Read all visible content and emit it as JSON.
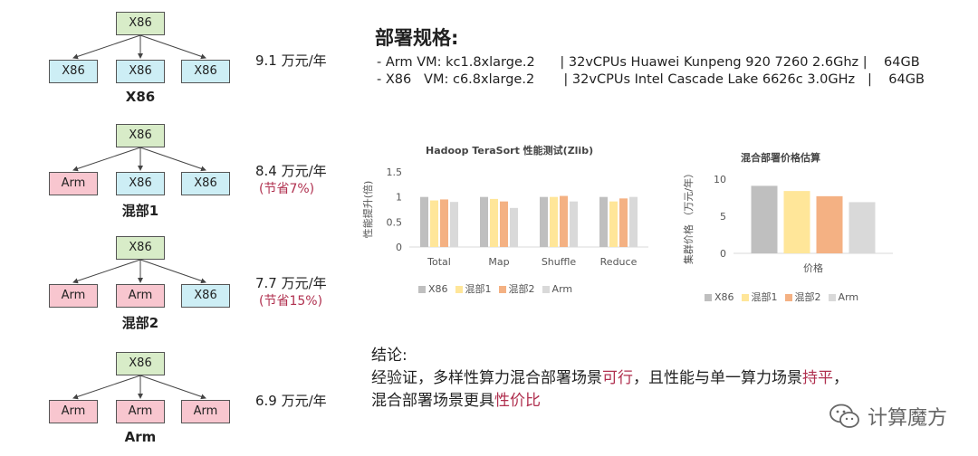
{
  "trees": [
    {
      "root": "X86",
      "leaves": [
        "X86",
        "X86",
        "X86"
      ],
      "label": "X86",
      "price": "9.1 万元/年",
      "saving": ""
    },
    {
      "root": "X86",
      "leaves": [
        "Arm",
        "X86",
        "X86"
      ],
      "label": "混部1",
      "price": "8.4 万元/年",
      "saving": "(节省7%)"
    },
    {
      "root": "X86",
      "leaves": [
        "Arm",
        "Arm",
        "X86"
      ],
      "label": "混部2",
      "price": "7.7 万元/年",
      "saving": "(节省15%)"
    },
    {
      "root": "X86",
      "leaves": [
        "Arm",
        "Arm",
        "Arm"
      ],
      "label": "Arm",
      "price": "6.9 万元/年",
      "saving": ""
    }
  ],
  "spec": {
    "title": "部署规格:",
    "line1": "- Arm VM: kc1.8xlarge.2      | 32vCPUs Huawei Kunpeng 920 7260 2.6Ghz |    64GB",
    "line2": "- X86   VM: c6.8xlarge.2       | 32vCPUs Intel Cascade Lake 6626c 3.0GHz   |    64GB"
  },
  "colors": {
    "X86": "#bfbfbf",
    "混部1": "#ffe699",
    "混部2": "#f4b183",
    "Arm": "#d9d9d9",
    "accent": "#b0304f"
  },
  "chart_data": [
    {
      "type": "bar",
      "title": "Hadoop TeraSort 性能测试(Zlib)",
      "ylabel": "性能提升(倍)",
      "categories": [
        "Total",
        "Map",
        "Shuffle",
        "Reduce"
      ],
      "ylim": [
        0,
        1.5
      ],
      "yticks": [
        0,
        0.5,
        1,
        1.5
      ],
      "series": [
        {
          "name": "X86",
          "values": [
            1,
            1,
            1,
            1
          ]
        },
        {
          "name": "混部1",
          "values": [
            0.93,
            0.96,
            1.0,
            0.91
          ]
        },
        {
          "name": "混部2",
          "values": [
            0.95,
            0.91,
            1.02,
            0.97
          ]
        },
        {
          "name": "Arm",
          "values": [
            0.9,
            0.78,
            0.91,
            1.0
          ]
        }
      ],
      "grid": false,
      "legend": "bottom"
    },
    {
      "type": "bar",
      "title": "混合部署价格估算",
      "xlabel": "价格",
      "ylabel": "集群价格 （万元/年）",
      "categories": [
        "价格"
      ],
      "ylim": [
        0,
        10
      ],
      "yticks": [
        0,
        5,
        10
      ],
      "series": [
        {
          "name": "X86",
          "values": [
            9.1
          ]
        },
        {
          "name": "混部1",
          "values": [
            8.4
          ]
        },
        {
          "name": "混部2",
          "values": [
            7.7
          ]
        },
        {
          "name": "Arm",
          "values": [
            6.9
          ]
        }
      ],
      "grid": false,
      "legend": "bottom"
    }
  ],
  "conclusion": {
    "title": "结论:",
    "l1a": "经验证，多样性算力混合部署场景",
    "l1b": "可行",
    "l1c": "，且性能与单一算力场景",
    "l1d": "持平",
    "l1e": "，",
    "l2a": "混合部署场景更具",
    "l2b": "性价比"
  },
  "watermark": {
    "text": "计算魔方",
    "icon": "wechat-icon"
  }
}
